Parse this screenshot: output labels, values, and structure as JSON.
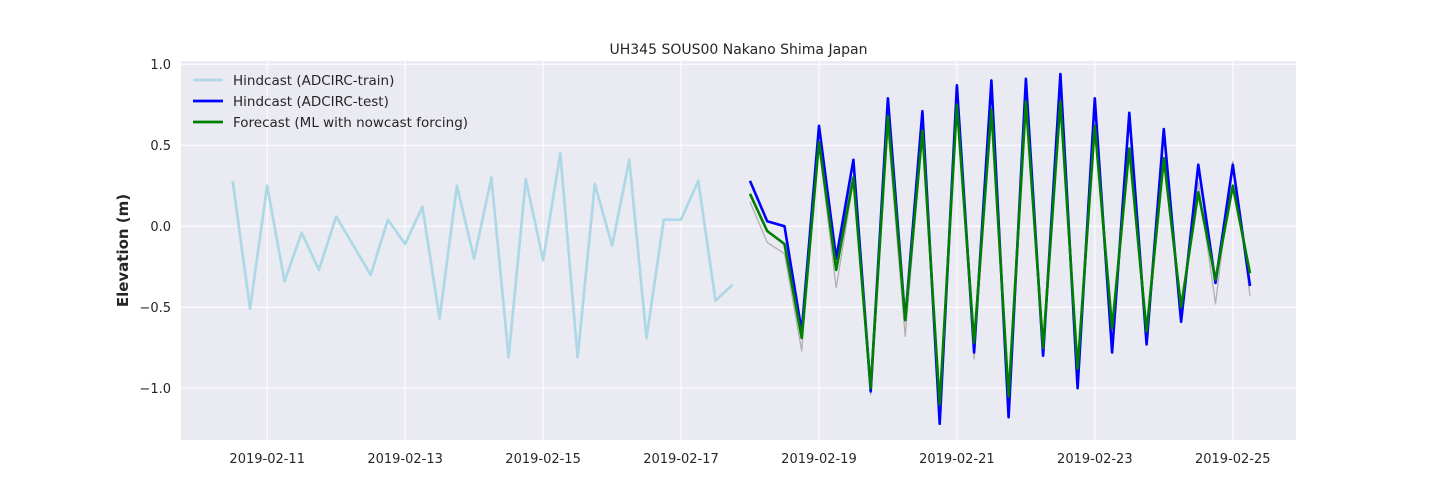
{
  "chart_data": {
    "type": "line",
    "title": "UH345 SOUS00 Nakano Shima Japan",
    "xlabel": "",
    "ylabel": "Elevation (m)",
    "x_is_date": true,
    "xlim": [
      "2019-02-09T18:00",
      "2019-02-25T22:00"
    ],
    "ylim": [
      -1.32,
      1.02
    ],
    "xticks": [
      "2019-02-11",
      "2019-02-13",
      "2019-02-15",
      "2019-02-17",
      "2019-02-19",
      "2019-02-21",
      "2019-02-23",
      "2019-02-25"
    ],
    "yticks": [
      1.0,
      0.5,
      0.0,
      -0.5,
      -1.0
    ],
    "ytick_labels": [
      "1.0",
      "0.5",
      "0.0",
      "−0.5",
      "−1.0"
    ],
    "grid": true,
    "legend_position": "top-left",
    "colors": {
      "axes_face": "#eaeaf2",
      "grid": "#ffffff",
      "train": "#add8e6",
      "test": "#0000ff",
      "forecast": "#008000",
      "reference": "#b0b0b0"
    },
    "series": [
      {
        "name": "",
        "role": "reference",
        "color": "#b0b0b0",
        "x": [
          "2019-02-18T00:00",
          "2019-02-18T06:00",
          "2019-02-18T12:00",
          "2019-02-18T18:00",
          "2019-02-19T00:00",
          "2019-02-19T06:00",
          "2019-02-19T12:00",
          "2019-02-19T18:00",
          "2019-02-20T00:00",
          "2019-02-20T06:00",
          "2019-02-20T12:00",
          "2019-02-20T18:00",
          "2019-02-21T00:00",
          "2019-02-21T06:00",
          "2019-02-21T12:00",
          "2019-02-21T18:00",
          "2019-02-22T00:00",
          "2019-02-22T06:00",
          "2019-02-22T12:00",
          "2019-02-22T18:00",
          "2019-02-23T00:00",
          "2019-02-23T06:00",
          "2019-02-23T12:00",
          "2019-02-23T18:00",
          "2019-02-24T00:00",
          "2019-02-24T06:00",
          "2019-02-24T12:00",
          "2019-02-24T18:00",
          "2019-02-25T00:00",
          "2019-02-25T06:00"
        ],
        "values": [
          0.15,
          -0.1,
          -0.17,
          -0.77,
          0.5,
          -0.38,
          0.28,
          -1.04,
          0.6,
          -0.68,
          0.56,
          -1.1,
          0.76,
          -0.82,
          0.7,
          -1.06,
          0.75,
          -0.8,
          0.78,
          -0.95,
          0.6,
          -0.72,
          0.48,
          -0.72,
          0.4,
          -0.5,
          0.27,
          -0.48,
          0.4,
          -0.43
        ]
      },
      {
        "name": "Hindcast (ADCIRC-train)",
        "role": "train",
        "color": "#add8e6",
        "x": [
          "2019-02-10T12:00",
          "2019-02-10T18:00",
          "2019-02-11T00:00",
          "2019-02-11T06:00",
          "2019-02-11T12:00",
          "2019-02-11T18:00",
          "2019-02-12T00:00",
          "2019-02-12T06:00",
          "2019-02-12T12:00",
          "2019-02-12T18:00",
          "2019-02-13T00:00",
          "2019-02-13T06:00",
          "2019-02-13T12:00",
          "2019-02-13T18:00",
          "2019-02-14T00:00",
          "2019-02-14T06:00",
          "2019-02-14T12:00",
          "2019-02-14T18:00",
          "2019-02-15T00:00",
          "2019-02-15T06:00",
          "2019-02-15T12:00",
          "2019-02-15T18:00",
          "2019-02-16T00:00",
          "2019-02-16T06:00",
          "2019-02-16T12:00",
          "2019-02-16T18:00",
          "2019-02-17T00:00",
          "2019-02-17T06:00",
          "2019-02-17T12:00",
          "2019-02-17T18:00"
        ],
        "values": [
          0.28,
          -0.51,
          0.25,
          -0.34,
          -0.04,
          -0.27,
          0.06,
          -0.12,
          -0.3,
          0.04,
          -0.11,
          0.12,
          -0.57,
          0.25,
          -0.2,
          0.3,
          -0.81,
          0.29,
          -0.21,
          0.45,
          -0.81,
          0.26,
          -0.12,
          0.41,
          -0.69,
          0.04,
          0.04,
          0.28,
          -0.46,
          -0.36
        ]
      },
      {
        "name": "Hindcast (ADCIRC-test)",
        "role": "test",
        "color": "#0000ff",
        "x": [
          "2019-02-18T00:00",
          "2019-02-18T06:00",
          "2019-02-18T12:00",
          "2019-02-18T18:00",
          "2019-02-19T00:00",
          "2019-02-19T06:00",
          "2019-02-19T12:00",
          "2019-02-19T18:00",
          "2019-02-20T00:00",
          "2019-02-20T06:00",
          "2019-02-20T12:00",
          "2019-02-20T18:00",
          "2019-02-21T00:00",
          "2019-02-21T06:00",
          "2019-02-21T12:00",
          "2019-02-21T18:00",
          "2019-02-22T00:00",
          "2019-02-22T06:00",
          "2019-02-22T12:00",
          "2019-02-22T18:00",
          "2019-02-23T00:00",
          "2019-02-23T06:00",
          "2019-02-23T12:00",
          "2019-02-23T18:00",
          "2019-02-24T00:00",
          "2019-02-24T06:00",
          "2019-02-24T12:00",
          "2019-02-24T18:00",
          "2019-02-25T00:00",
          "2019-02-25T06:00"
        ],
        "values": [
          0.28,
          0.03,
          0.0,
          -0.65,
          0.62,
          -0.2,
          0.41,
          -1.02,
          0.79,
          -0.58,
          0.71,
          -1.22,
          0.87,
          -0.78,
          0.9,
          -1.18,
          0.91,
          -0.8,
          0.94,
          -1.0,
          0.79,
          -0.78,
          0.7,
          -0.73,
          0.6,
          -0.59,
          0.38,
          -0.35,
          0.38,
          -0.37
        ]
      },
      {
        "name": "Forecast (ML with nowcast forcing)",
        "role": "forecast",
        "color": "#008000",
        "x": [
          "2019-02-18T00:00",
          "2019-02-18T06:00",
          "2019-02-18T12:00",
          "2019-02-18T18:00",
          "2019-02-19T00:00",
          "2019-02-19T06:00",
          "2019-02-19T12:00",
          "2019-02-19T18:00",
          "2019-02-20T00:00",
          "2019-02-20T06:00",
          "2019-02-20T12:00",
          "2019-02-20T18:00",
          "2019-02-21T00:00",
          "2019-02-21T06:00",
          "2019-02-21T12:00",
          "2019-02-21T18:00",
          "2019-02-22T00:00",
          "2019-02-22T06:00",
          "2019-02-22T12:00",
          "2019-02-22T18:00",
          "2019-02-23T00:00",
          "2019-02-23T06:00",
          "2019-02-23T12:00",
          "2019-02-23T18:00",
          "2019-02-24T00:00",
          "2019-02-24T06:00",
          "2019-02-24T12:00",
          "2019-02-24T18:00",
          "2019-02-25T00:00",
          "2019-02-25T06:00"
        ],
        "values": [
          0.2,
          -0.03,
          -0.11,
          -0.69,
          0.52,
          -0.27,
          0.3,
          -1.0,
          0.68,
          -0.58,
          0.59,
          -1.1,
          0.75,
          -0.72,
          0.72,
          -1.05,
          0.77,
          -0.75,
          0.77,
          -0.88,
          0.62,
          -0.63,
          0.48,
          -0.65,
          0.42,
          -0.5,
          0.21,
          -0.33,
          0.25,
          -0.29
        ]
      }
    ]
  }
}
